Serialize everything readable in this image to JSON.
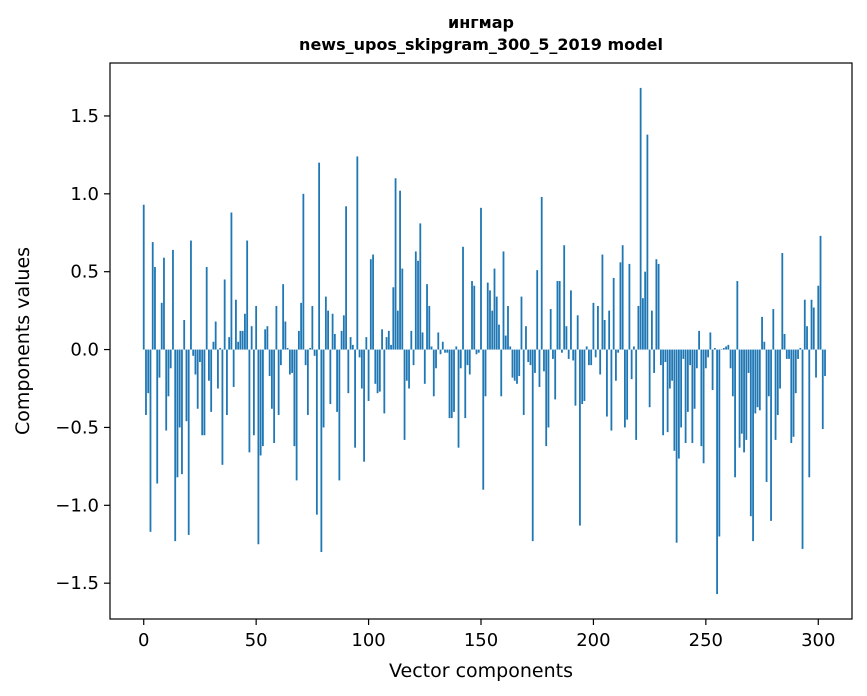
{
  "chart_data": {
    "type": "bar",
    "title_line1": "ингмар",
    "title_line2": "news_upos_skipgram_300_5_2019 model",
    "xlabel": "Vector components",
    "ylabel": "Components values",
    "xlim": [
      -15,
      315
    ],
    "ylim": [
      -1.73,
      1.84
    ],
    "xticks": [
      0,
      50,
      100,
      150,
      200,
      250,
      300
    ],
    "xtick_labels": [
      "0",
      "50",
      "100",
      "150",
      "200",
      "250",
      "300"
    ],
    "yticks": [
      -1.5,
      -1.0,
      -0.5,
      0.0,
      0.5,
      1.0,
      1.5
    ],
    "ytick_labels": [
      "−1.5",
      "−1.0",
      "−0.5",
      "0.0",
      "0.5",
      "1.0",
      "1.5"
    ],
    "bar_color": "#1f77b4",
    "values": [
      0.93,
      -0.42,
      -0.28,
      -1.17,
      0.69,
      0.53,
      -0.86,
      -0.18,
      0.3,
      0.59,
      -0.52,
      -0.3,
      -0.12,
      0.64,
      -1.23,
      -0.82,
      -0.5,
      -0.8,
      0.19,
      -0.46,
      -1.19,
      0.7,
      -0.04,
      -0.16,
      -0.38,
      -0.08,
      -0.55,
      -0.55,
      0.53,
      -0.2,
      -0.4,
      0.05,
      0.18,
      -0.25,
      0.01,
      -0.74,
      0.45,
      -0.42,
      0.08,
      0.88,
      -0.24,
      0.32,
      0.05,
      0.12,
      0.12,
      0.23,
      0.7,
      -0.66,
      0.15,
      -0.55,
      0.28,
      -1.25,
      -0.68,
      -0.62,
      0.13,
      0.15,
      -0.17,
      -0.38,
      -0.6,
      0.28,
      -0.42,
      -0.1,
      0.42,
      0.18,
      0.01,
      -0.16,
      -0.15,
      -0.62,
      -0.84,
      0.12,
      0.3,
      1.0,
      -0.1,
      -0.42,
      0.01,
      0.28,
      -0.04,
      -1.06,
      1.2,
      -1.3,
      -0.5,
      0.34,
      0.25,
      -0.35,
      0.23,
      0.1,
      -0.4,
      -0.84,
      0.12,
      0.22,
      0.92,
      -0.28,
      0.08,
      0.03,
      -0.63,
      1.24,
      -0.05,
      -0.25,
      -0.72,
      0.08,
      -0.33,
      0.58,
      0.61,
      -0.22,
      -0.28,
      -0.27,
      0.13,
      -0.41,
      0.08,
      0.12,
      0.03,
      0.4,
      1.1,
      0.25,
      1.02,
      0.52,
      -0.58,
      -0.2,
      -0.25,
      0.12,
      -0.1,
      0.63,
      0.57,
      0.81,
      0.11,
      -0.22,
      0.42,
      0.28,
      0.02,
      -0.3,
      -0.12,
      0.11,
      -0.03,
      0.05,
      -0.02,
      -0.02,
      -0.44,
      -0.44,
      -0.4,
      0.02,
      -0.63,
      -0.12,
      0.66,
      -0.44,
      -0.1,
      -0.16,
      0.44,
      0.41,
      -0.03,
      -0.02,
      0.91,
      -0.9,
      -0.3,
      0.43,
      0.38,
      0.25,
      0.52,
      0.34,
      0.16,
      -0.3,
      0.63,
      0.09,
      0.28,
      0.02,
      -0.18,
      -0.2,
      -0.22,
      -0.17,
      0.34,
      -0.42,
      0.15,
      -0.08,
      -0.1,
      -1.23,
      -0.15,
      0.51,
      -0.24,
      0.98,
      -0.14,
      -0.62,
      -0.5,
      0.26,
      -0.06,
      -0.32,
      0.44,
      0.44,
      -0.02,
      0.67,
      0.15,
      -0.06,
      0.38,
      -0.07,
      -0.36,
      0.22,
      -1.13,
      -0.35,
      -0.33,
      0.02,
      -0.1,
      -0.1,
      0.3,
      -0.05,
      0.28,
      -0.16,
      0.61,
      0.19,
      -0.43,
      0.25,
      -0.52,
      0.46,
      -0.2,
      -0.02,
      0.56,
      0.67,
      -0.5,
      -0.45,
      0.55,
      -0.19,
      0.02,
      -0.58,
      0.28,
      1.68,
      0.33,
      0.5,
      1.38,
      -0.37,
      0.25,
      -0.15,
      0.58,
      0.55,
      -0.1,
      -0.55,
      -0.08,
      -0.53,
      -0.25,
      -0.2,
      -0.65,
      -1.24,
      -0.7,
      -0.5,
      -0.06,
      -0.6,
      -0.4,
      -0.1,
      -0.6,
      -0.38,
      -0.12,
      0.12,
      -0.62,
      -0.73,
      -0.12,
      -0.05,
      0.11,
      -0.26,
      0.01,
      -1.57,
      -1.2,
      0.0,
      0.01,
      0.02,
      0.03,
      -0.12,
      -0.3,
      -0.82,
      0.44,
      -0.63,
      -0.54,
      -0.66,
      -0.58,
      -0.15,
      -1.07,
      -1.23,
      -0.41,
      -0.37,
      -0.39,
      0.21,
      0.05,
      -0.85,
      -0.3,
      -1.1,
      0.26,
      -0.58,
      -0.42,
      -0.25,
      0.62,
      0.1,
      -0.06,
      -0.06,
      -0.6,
      -0.56,
      -0.28,
      -0.06,
      0.01,
      -1.28,
      0.32,
      0.15,
      -0.82,
      0.32,
      0.27,
      -0.18,
      0.41,
      0.73,
      -0.51,
      -0.17
    ]
  }
}
